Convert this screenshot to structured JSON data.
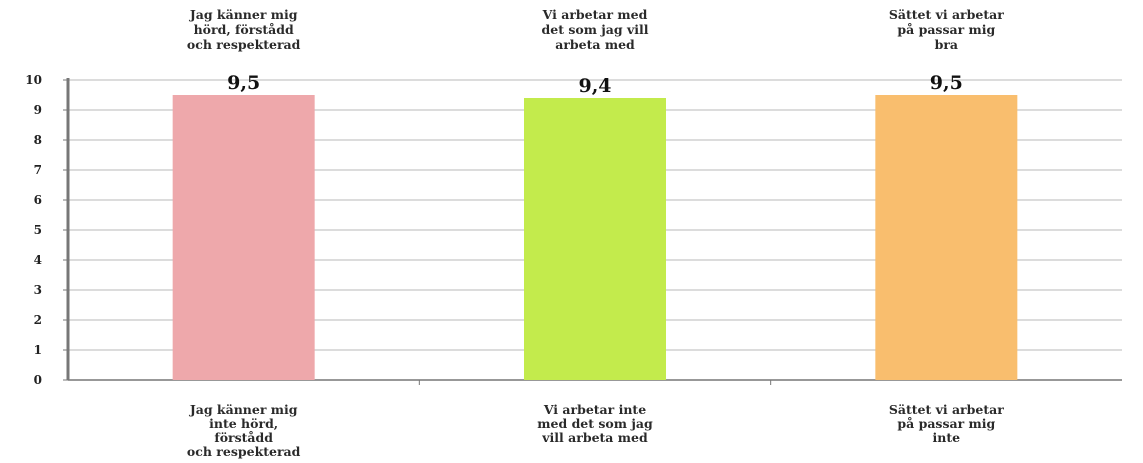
{
  "chart_data": {
    "type": "bar",
    "categories": [
      "Jag känner mig hörd, förstådd och respekterad",
      "Vi arbetar med det som jag vill arbeta med",
      "Sättet vi arbetar på passar mig bra"
    ],
    "top_captions": [
      [
        "Jag känner mig",
        "hörd, förstådd",
        "och respekterad"
      ],
      [
        "Vi arbetar med",
        "det som jag vill",
        "arbeta med"
      ],
      [
        "Sättet vi arbetar",
        "på passar mig",
        "bra"
      ]
    ],
    "bottom_captions": [
      [
        "Jag känner mig",
        "inte hörd,",
        "förstådd",
        "och respekterad"
      ],
      [
        "Vi arbetar inte",
        "med det som jag",
        "vill arbeta med"
      ],
      [
        "Sättet vi arbetar",
        "på passar mig",
        "inte"
      ]
    ],
    "values": [
      9.5,
      9.4,
      9.5
    ],
    "value_labels": [
      "9,5",
      "9,4",
      "9,5"
    ],
    "colors": [
      "#eea8ab",
      "#c3eb4c",
      "#f9be6e"
    ],
    "ylim": [
      0,
      10
    ],
    "yticks": [
      "0",
      "1",
      "2",
      "3",
      "4",
      "5",
      "6",
      "7",
      "8",
      "9",
      "10"
    ],
    "grid": true
  }
}
